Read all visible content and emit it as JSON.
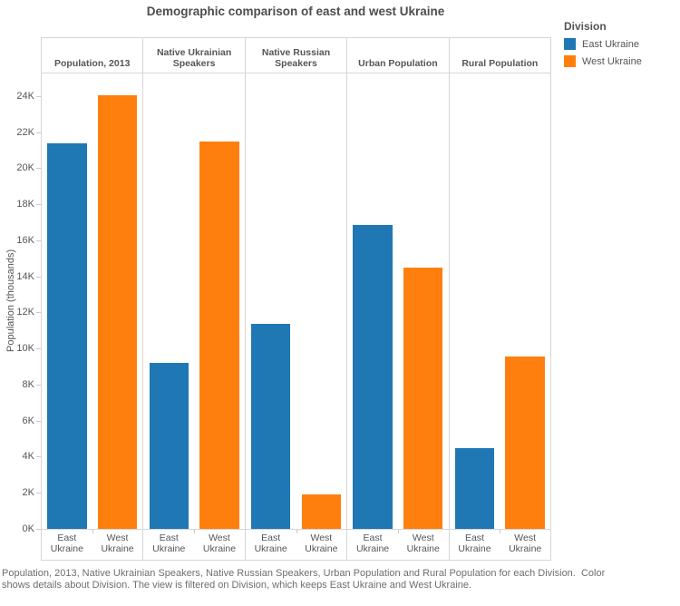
{
  "title": "Demographic comparison of east and west Ukraine",
  "legend": {
    "title": "Division",
    "items": [
      {
        "label": "East Ukraine",
        "color": "#1f77b4"
      },
      {
        "label": "West Ukraine",
        "color": "#ff7f0e"
      }
    ]
  },
  "y_axis": {
    "title": "Population (thousands)",
    "tick_labels": [
      "0K",
      "2K",
      "4K",
      "6K",
      "8K",
      "10K",
      "12K",
      "14K",
      "16K",
      "18K",
      "20K",
      "22K",
      "24K"
    ],
    "tick_values": [
      0,
      2,
      4,
      6,
      8,
      10,
      12,
      14,
      16,
      18,
      20,
      22,
      24
    ]
  },
  "caption": "Population, 2013, Native Ukrainian Speakers, Native Russian Speakers, Urban Population and Rural Population for each Division.  Color shows details about Division. The view is filtered on Division, which keeps East Ukraine and West Ukraine.",
  "chart_data": {
    "type": "bar",
    "title": "Demographic comparison of east and west Ukraine",
    "panels": [
      "Population, 2013",
      "Native Ukrainian Speakers",
      "Native Russian Speakers",
      "Urban Population",
      "Rural Population"
    ],
    "categories": [
      "East Ukraine",
      "West Ukraine"
    ],
    "unit": "thousands (K)",
    "ylabel": "Population (thousands)",
    "ylim": [
      0,
      25.3
    ],
    "grid": false,
    "legend_position": "top-right",
    "series": [
      {
        "name": "East Ukraine",
        "color": "#1f77b4",
        "values": [
          21.4,
          9.2,
          11.4,
          16.9,
          4.5
        ]
      },
      {
        "name": "West Ukraine",
        "color": "#ff7f0e",
        "values": [
          24.1,
          21.5,
          1.9,
          14.5,
          9.6
        ]
      }
    ]
  }
}
